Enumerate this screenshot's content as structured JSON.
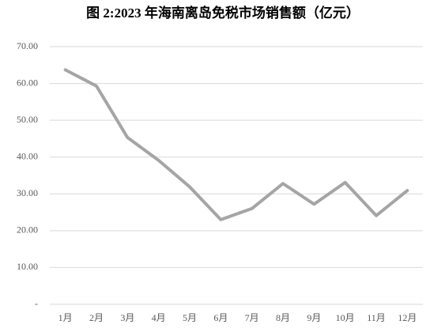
{
  "chart_data": {
    "type": "line",
    "title": "图 2:2023 年海南离岛免税市场销售额（亿元）",
    "categories": [
      "1月",
      "2月",
      "3月",
      "4月",
      "5月",
      "6月",
      "7月",
      "8月",
      "9月",
      "10月",
      "11月",
      "12月"
    ],
    "values": [
      63.7,
      59.3,
      45.3,
      39.1,
      31.9,
      23.0,
      26.0,
      32.8,
      27.2,
      33.1,
      24.1,
      30.9
    ],
    "color": "#a5a5a5",
    "ylim": [
      0,
      70
    ],
    "yticks": [
      {
        "value": 0,
        "label": "-"
      },
      {
        "value": 10,
        "label": "10.00"
      },
      {
        "value": 20,
        "label": "20.00"
      },
      {
        "value": 30,
        "label": "30.00"
      },
      {
        "value": 40,
        "label": "40.00"
      },
      {
        "value": 50,
        "label": "50.00"
      },
      {
        "value": 60,
        "label": "60.00"
      },
      {
        "value": 70,
        "label": "70.00"
      }
    ],
    "grid": true
  }
}
